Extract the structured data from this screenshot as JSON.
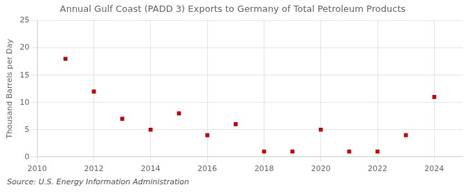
{
  "chart_data": {
    "type": "scatter",
    "title": "Annual Gulf Coast (PADD 3) Exports to Germany of Total Petroleum Products",
    "ylabel": "Thousand Barrels per Day",
    "source": "Source: U.S. Energy Information Administration",
    "x": [
      2011,
      2012,
      2013,
      2014,
      2015,
      2016,
      2017,
      2018,
      2019,
      2020,
      2021,
      2022,
      2023,
      2024
    ],
    "values": [
      18,
      12,
      7,
      5,
      8,
      4,
      6,
      1,
      1,
      5,
      1,
      1,
      4,
      11
    ],
    "color": "#cc0000",
    "marker": "square",
    "xlim": [
      2010,
      2025
    ],
    "ylim": [
      0,
      25
    ],
    "xticks": [
      2010,
      2012,
      2014,
      2016,
      2018,
      2020,
      2022,
      2024
    ],
    "yticks": [
      0,
      5,
      10,
      15,
      20,
      25
    ],
    "grid": true
  }
}
